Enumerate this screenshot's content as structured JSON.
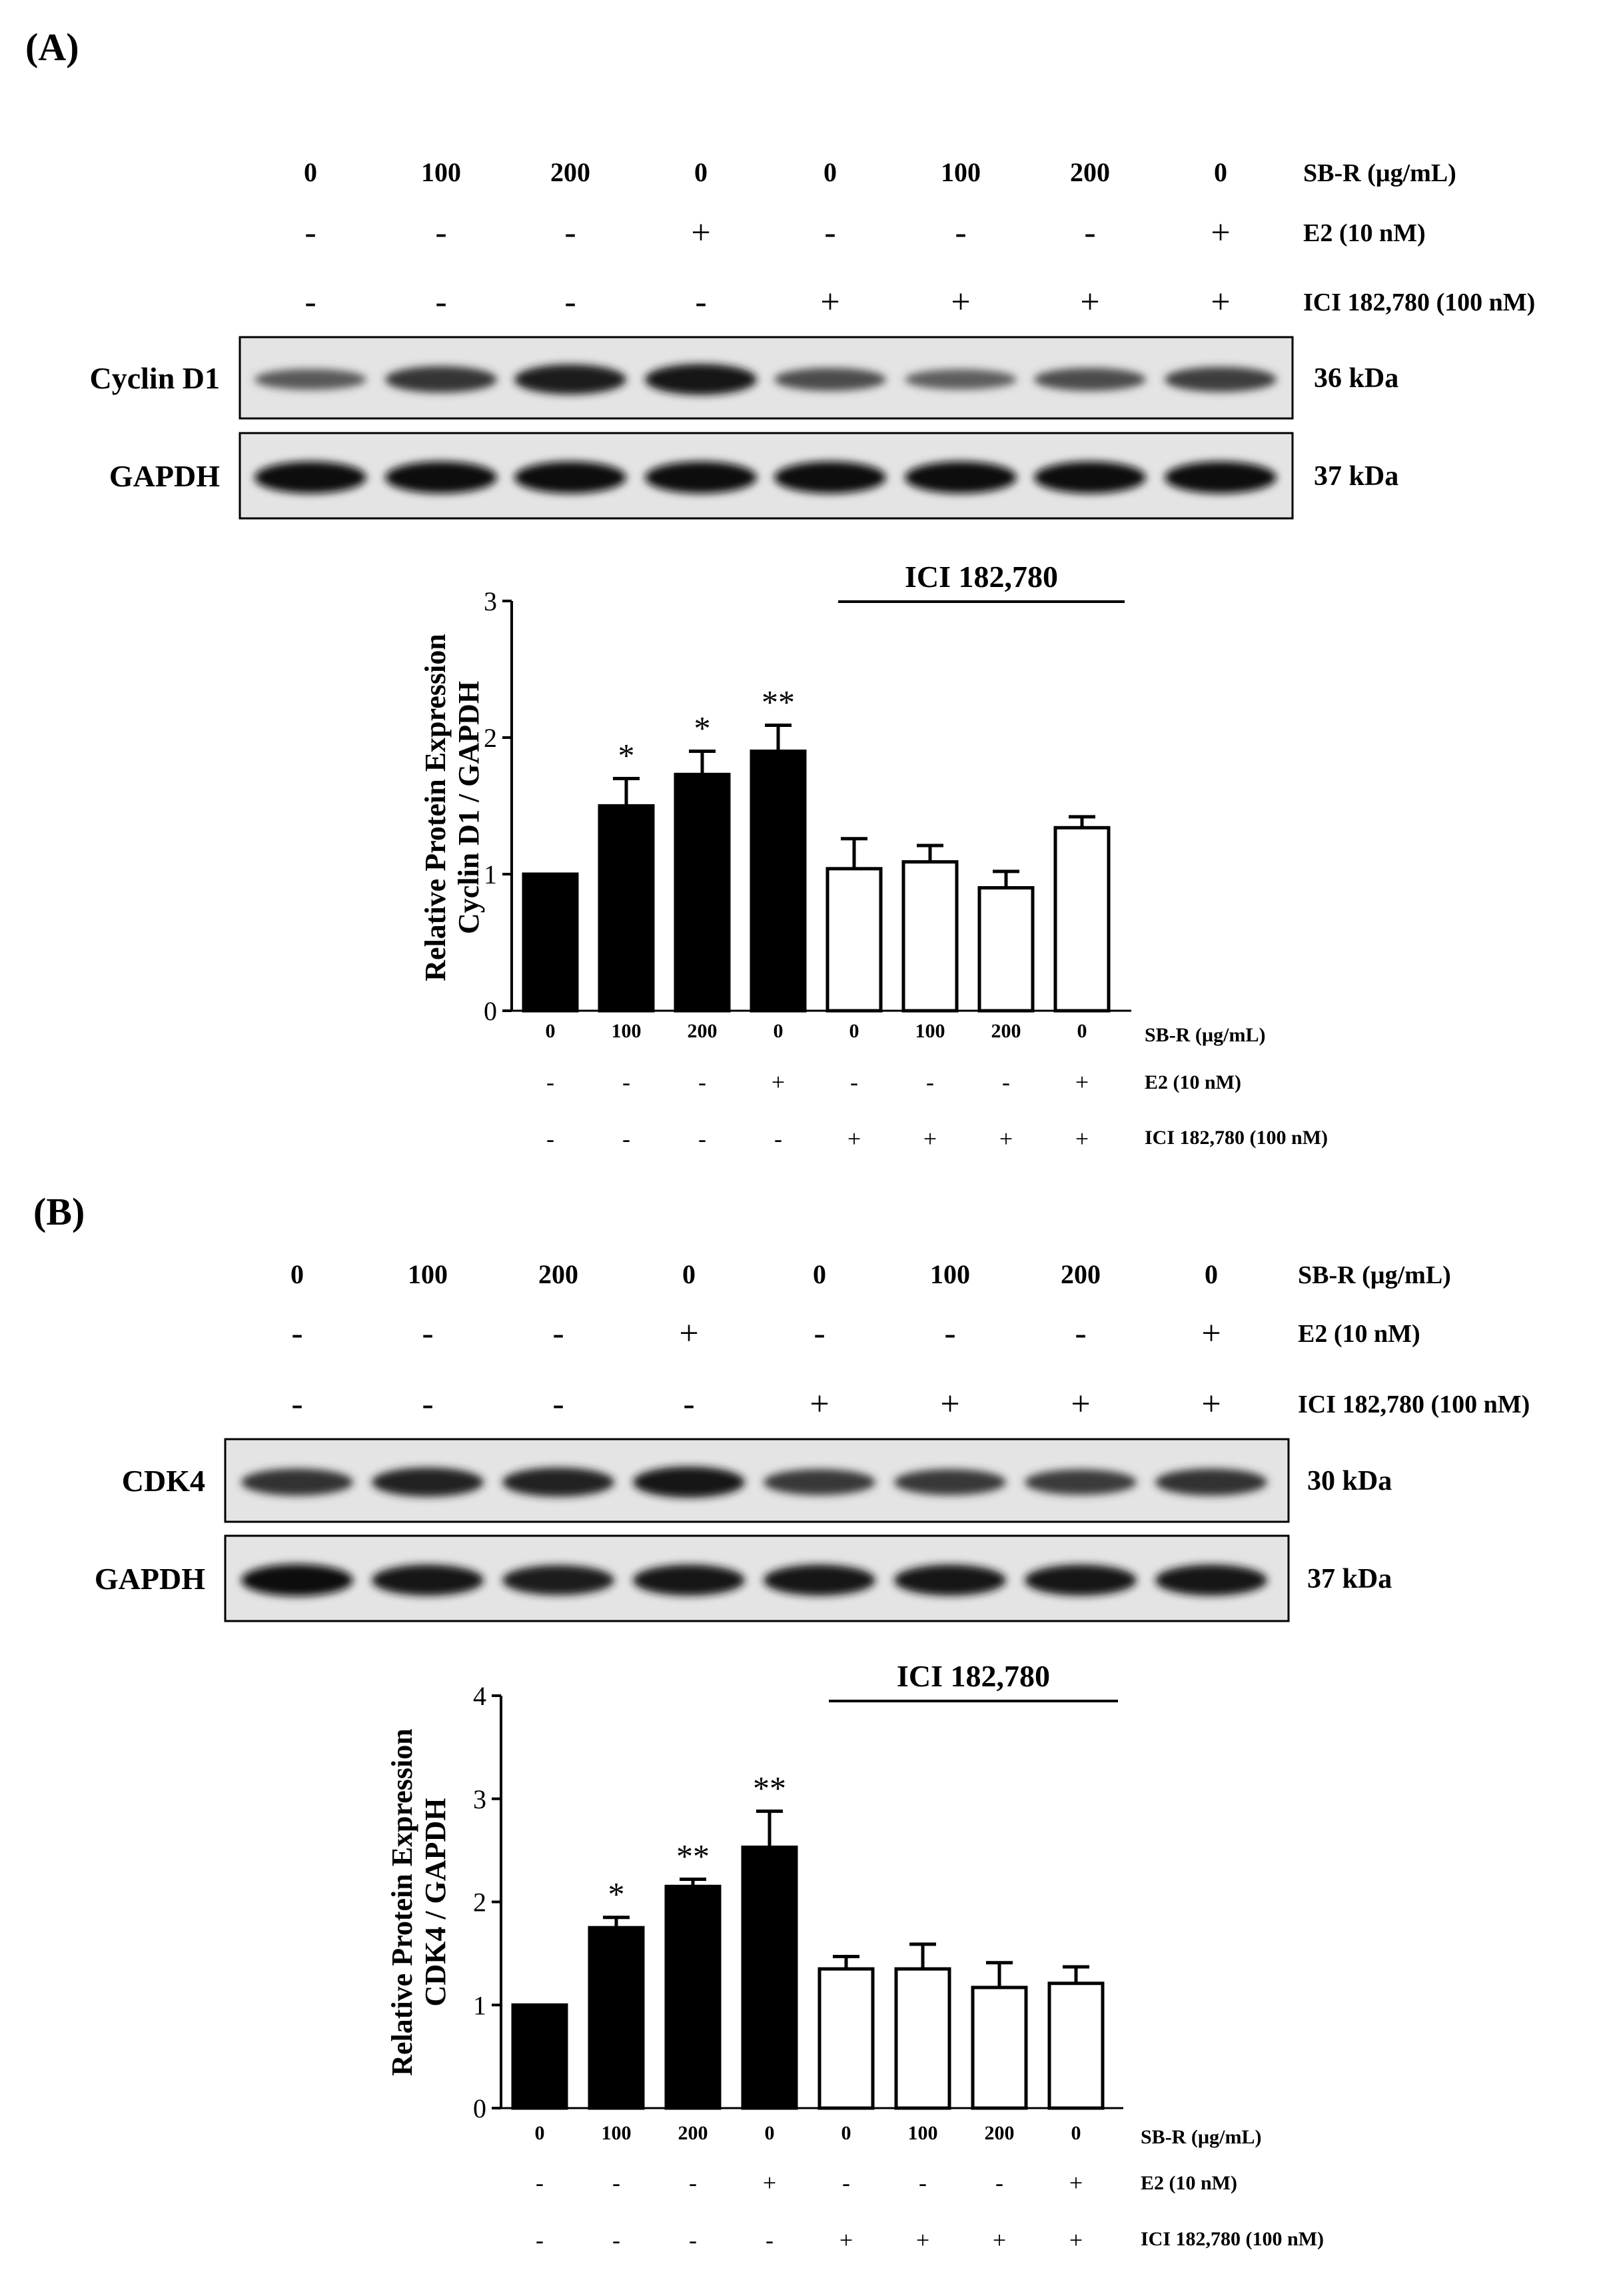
{
  "panels": [
    {
      "label": "(A)",
      "conditions": {
        "sbr_values": [
          "0",
          "100",
          "200",
          "0",
          "0",
          "100",
          "200",
          "0"
        ],
        "sbr_label": "SB-R (µg/mL)",
        "e2_values": [
          "-",
          "-",
          "-",
          "+",
          "-",
          "-",
          "-",
          "+"
        ],
        "e2_label": "E2 (10 nM)",
        "ici_values": [
          "-",
          "-",
          "-",
          "-",
          "+",
          "+",
          "+",
          "+"
        ],
        "ici_label": "ICI 182,780 (100 nM)"
      },
      "blots": [
        {
          "name": "Cyclin D1",
          "kda": "36 kDa",
          "intensity": [
            0.45,
            0.72,
            0.9,
            0.95,
            0.55,
            0.42,
            0.55,
            0.65
          ]
        },
        {
          "name": "GAPDH",
          "kda": "37 kDa",
          "intensity": [
            1,
            1,
            1,
            1,
            1,
            1,
            1,
            1
          ]
        }
      ],
      "chart_data": {
        "type": "bar",
        "categories": [
          "0",
          "100",
          "200",
          "0",
          "0",
          "100",
          "200",
          "0"
        ],
        "values": [
          1.0,
          1.5,
          1.73,
          1.9,
          1.04,
          1.09,
          0.9,
          1.34
        ],
        "errors": [
          0,
          0.2,
          0.17,
          0.19,
          0.22,
          0.12,
          0.12,
          0.08
        ],
        "fill": [
          "black",
          "black",
          "black",
          "black",
          "white",
          "white",
          "white",
          "white"
        ],
        "significance": [
          "",
          "*",
          "*",
          "**",
          "",
          "",
          "",
          ""
        ],
        "ylabel_line1": "Relative Protein Expression",
        "ylabel_line2": "Cyclin D1 / GAPDH",
        "ylim": [
          0,
          3
        ],
        "yticks": [
          "0",
          "1",
          "2",
          "3"
        ],
        "bracket_label": "ICI 182,780",
        "row_labels": {
          "sbr": "SB-R (µg/mL)",
          "e2": "E2 (10 nM)",
          "ici": "ICI 182,780 (100 nM)"
        },
        "e2_row": [
          "-",
          "-",
          "-",
          "+",
          "-",
          "-",
          "-",
          "+"
        ],
        "ici_row": [
          "-",
          "-",
          "-",
          "-",
          "+",
          "+",
          "+",
          "+"
        ]
      }
    },
    {
      "label": "(B)",
      "conditions": {
        "sbr_values": [
          "0",
          "100",
          "200",
          "0",
          "0",
          "100",
          "200",
          "0"
        ],
        "sbr_label": "SB-R (µg/mL)",
        "e2_values": [
          "-",
          "-",
          "-",
          "+",
          "-",
          "-",
          "-",
          "+"
        ],
        "e2_label": "E2 (10 nM)",
        "ici_values": [
          "-",
          "-",
          "-",
          "-",
          "+",
          "+",
          "+",
          "+"
        ],
        "ici_label": "ICI 182,780 (100 nM)"
      },
      "blots": [
        {
          "name": "CDK4",
          "kda": "30 kDa",
          "intensity": [
            0.75,
            0.85,
            0.85,
            0.95,
            0.7,
            0.7,
            0.68,
            0.75
          ]
        },
        {
          "name": "GAPDH",
          "kda": "37 kDa",
          "intensity": [
            1,
            0.95,
            0.9,
            0.95,
            0.95,
            0.95,
            0.95,
            0.95
          ]
        }
      ],
      "chart_data": {
        "type": "bar",
        "categories": [
          "0",
          "100",
          "200",
          "0",
          "0",
          "100",
          "200",
          "0"
        ],
        "values": [
          1.0,
          1.75,
          2.15,
          2.53,
          1.35,
          1.35,
          1.17,
          1.21
        ],
        "errors": [
          0,
          0.1,
          0.07,
          0.35,
          0.12,
          0.24,
          0.24,
          0.16
        ],
        "fill": [
          "black",
          "black",
          "black",
          "black",
          "white",
          "white",
          "white",
          "white"
        ],
        "significance": [
          "",
          "*",
          "**",
          "**",
          "",
          "",
          "",
          ""
        ],
        "ylabel_line1": "Relative Protein Expression",
        "ylabel_line2": "CDK4 / GAPDH",
        "ylim": [
          0,
          4
        ],
        "yticks": [
          "0",
          "1",
          "2",
          "3",
          "4"
        ],
        "bracket_label": "ICI 182,780",
        "row_labels": {
          "sbr": "SB-R (µg/mL)",
          "e2": "E2 (10 nM)",
          "ici": "ICI 182,780 (100 nM)"
        },
        "e2_row": [
          "-",
          "-",
          "-",
          "+",
          "-",
          "-",
          "-",
          "+"
        ],
        "ici_row": [
          "-",
          "-",
          "-",
          "-",
          "+",
          "+",
          "+",
          "+"
        ]
      }
    }
  ]
}
